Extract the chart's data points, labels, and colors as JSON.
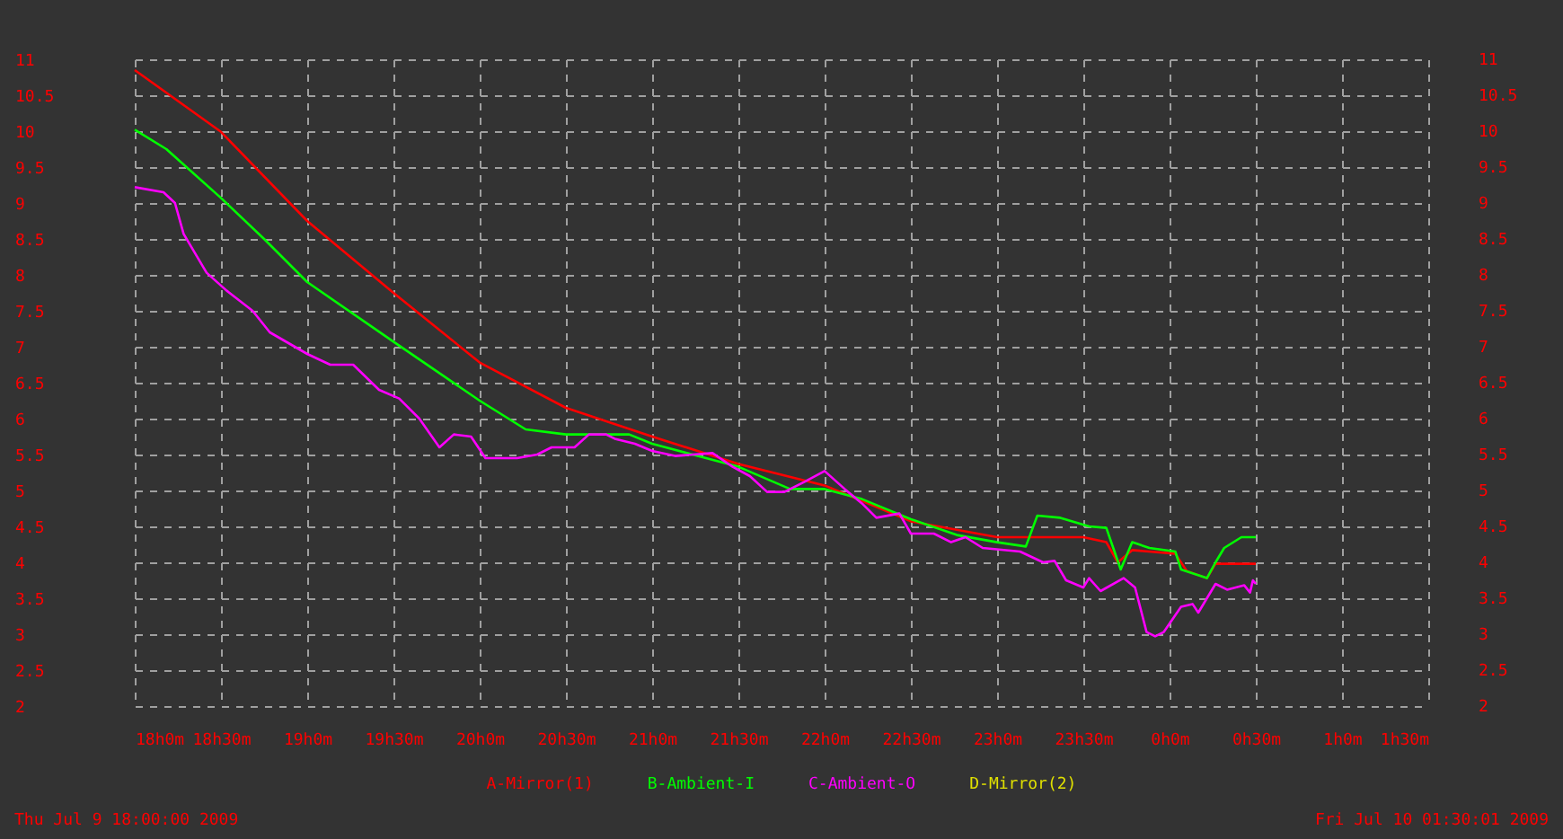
{
  "chart_data": {
    "type": "line",
    "xlim": [
      "2009-07-09T18:00",
      "2009-07-10T01:30"
    ],
    "xticks": [
      {
        "value": "2009-07-09T18:00",
        "label": "18h0m"
      },
      {
        "value": "2009-07-09T18:30",
        "label": "18h30m"
      },
      {
        "value": "2009-07-09T19:00",
        "label": "19h0m"
      },
      {
        "value": "2009-07-09T19:30",
        "label": "19h30m"
      },
      {
        "value": "2009-07-09T20:00",
        "label": "20h0m"
      },
      {
        "value": "2009-07-09T20:30",
        "label": "20h30m"
      },
      {
        "value": "2009-07-09T21:00",
        "label": "21h0m"
      },
      {
        "value": "2009-07-09T21:30",
        "label": "21h30m"
      },
      {
        "value": "2009-07-09T22:00",
        "label": "22h0m"
      },
      {
        "value": "2009-07-09T22:30",
        "label": "22h30m"
      },
      {
        "value": "2009-07-09T23:00",
        "label": "23h0m"
      },
      {
        "value": "2009-07-09T23:30",
        "label": "23h30m"
      },
      {
        "value": "2009-07-10T00:00",
        "label": "0h0m"
      },
      {
        "value": "2009-07-10T00:30",
        "label": "0h30m"
      },
      {
        "value": "2009-07-10T01:00",
        "label": "1h0m"
      },
      {
        "value": "2009-07-10T01:30",
        "label": "1h30m"
      }
    ],
    "ylim": [
      2,
      11
    ],
    "yticks": [
      2,
      2.5,
      3,
      3.5,
      4,
      4.5,
      5,
      5.5,
      6,
      6.5,
      7,
      7.5,
      8,
      8.5,
      9,
      9.5,
      10,
      10.5,
      11
    ],
    "y2lim": [
      2,
      11
    ],
    "y2ticks": [
      2,
      2.5,
      3,
      3.5,
      4,
      4.5,
      5,
      5.5,
      6,
      6.5,
      7,
      7.5,
      8,
      8.5,
      9,
      9.5,
      10,
      10.5,
      11
    ],
    "grid": true,
    "legend": "bottom",
    "marker": "none",
    "line_style": "solid",
    "series": [
      {
        "name": "A-Mirror(1)",
        "color": "#ff0000",
        "x": [
          "2009-07-09T18:00",
          "2009-07-09T18:30",
          "2009-07-09T19:00",
          "2009-07-09T19:30",
          "2009-07-09T20:00",
          "2009-07-09T20:30",
          "2009-07-09T21:00",
          "2009-07-09T21:30",
          "2009-07-09T22:00",
          "2009-07-09T22:30",
          "2009-07-09T23:00",
          "2009-07-09T23:12",
          "2009-07-09T23:30",
          "2009-07-09T23:38",
          "2009-07-09T23:42",
          "2009-07-09T23:47",
          "2009-07-10T00:02",
          "2009-07-10T00:06",
          "2009-07-10T00:13",
          "2009-07-10T00:16",
          "2009-07-10T00:30"
        ],
        "values": [
          10.85,
          9.99,
          8.75,
          7.75,
          6.78,
          6.15,
          5.75,
          5.37,
          5.07,
          4.57,
          4.35,
          4.35,
          4.35,
          4.28,
          4.0,
          4.17,
          4.12,
          3.88,
          3.78,
          3.98,
          3.98
        ]
      },
      {
        "name": "B-Ambient-I",
        "color": "#00ff00",
        "x": [
          "2009-07-09T18:00",
          "2009-07-09T18:11",
          "2009-07-09T18:30",
          "2009-07-09T18:45",
          "2009-07-09T19:00",
          "2009-07-09T19:30",
          "2009-07-09T20:00",
          "2009-07-09T20:16",
          "2009-07-09T20:30",
          "2009-07-09T20:41",
          "2009-07-09T20:52",
          "2009-07-09T21:00",
          "2009-07-09T21:30",
          "2009-07-09T21:48",
          "2009-07-09T22:00",
          "2009-07-09T22:13",
          "2009-07-09T22:30",
          "2009-07-09T22:46",
          "2009-07-09T23:00",
          "2009-07-09T23:10",
          "2009-07-09T23:14",
          "2009-07-09T23:22",
          "2009-07-09T23:32",
          "2009-07-09T23:38",
          "2009-07-09T23:43",
          "2009-07-09T23:47",
          "2009-07-09T23:53",
          "2009-07-10T00:02",
          "2009-07-10T00:04",
          "2009-07-10T00:13",
          "2009-07-10T00:16",
          "2009-07-10T00:19",
          "2009-07-10T00:25",
          "2009-07-10T00:30"
        ],
        "values": [
          10.02,
          9.75,
          9.07,
          8.5,
          7.9,
          7.07,
          6.25,
          5.85,
          5.78,
          5.78,
          5.78,
          5.65,
          5.33,
          5.02,
          5.02,
          4.88,
          4.6,
          4.38,
          4.28,
          4.22,
          4.65,
          4.62,
          4.5,
          4.48,
          3.9,
          4.28,
          4.2,
          4.15,
          3.9,
          3.78,
          4.0,
          4.2,
          4.35,
          4.35
        ]
      },
      {
        "name": "C-Ambient-O",
        "color": "#ff00ff",
        "x": [
          "2009-07-09T18:00",
          "2009-07-09T18:10",
          "2009-07-09T18:14",
          "2009-07-09T18:17",
          "2009-07-09T18:25",
          "2009-07-09T18:32",
          "2009-07-09T18:41",
          "2009-07-09T18:47",
          "2009-07-09T19:00",
          "2009-07-09T19:08",
          "2009-07-09T19:16",
          "2009-07-09T19:25",
          "2009-07-09T19:32",
          "2009-07-09T19:39",
          "2009-07-09T19:46",
          "2009-07-09T19:51",
          "2009-07-09T19:57",
          "2009-07-09T20:02",
          "2009-07-09T20:13",
          "2009-07-09T20:20",
          "2009-07-09T20:25",
          "2009-07-09T20:33",
          "2009-07-09T20:38",
          "2009-07-09T20:44",
          "2009-07-09T20:47",
          "2009-07-09T20:54",
          "2009-07-09T21:00",
          "2009-07-09T21:08",
          "2009-07-09T21:21",
          "2009-07-09T21:28",
          "2009-07-09T21:34",
          "2009-07-09T21:40",
          "2009-07-09T21:46",
          "2009-07-09T21:53",
          "2009-07-09T22:00",
          "2009-07-09T22:07",
          "2009-07-09T22:13",
          "2009-07-09T22:18",
          "2009-07-09T22:26",
          "2009-07-09T22:30",
          "2009-07-09T22:38",
          "2009-07-09T22:44",
          "2009-07-09T22:49",
          "2009-07-09T22:55",
          "2009-07-09T23:08",
          "2009-07-09T23:16",
          "2009-07-09T23:20",
          "2009-07-09T23:24",
          "2009-07-09T23:30",
          "2009-07-09T23:32",
          "2009-07-09T23:36",
          "2009-07-09T23:44",
          "2009-07-09T23:48",
          "2009-07-09T23:52",
          "2009-07-09T23:55",
          "2009-07-09T23:58",
          "2009-07-10T00:04",
          "2009-07-10T00:08",
          "2009-07-10T00:10",
          "2009-07-10T00:13",
          "2009-07-10T00:16",
          "2009-07-10T00:20",
          "2009-07-10T00:26",
          "2009-07-10T00:28",
          "2009-07-10T00:29",
          "2009-07-10T00:30"
        ],
        "values": [
          9.22,
          9.15,
          9.0,
          8.57,
          8.03,
          7.78,
          7.5,
          7.2,
          6.9,
          6.75,
          6.75,
          6.4,
          6.28,
          6.0,
          5.6,
          5.78,
          5.75,
          5.45,
          5.45,
          5.5,
          5.6,
          5.6,
          5.78,
          5.78,
          5.72,
          5.65,
          5.55,
          5.48,
          5.52,
          5.33,
          5.2,
          4.98,
          4.98,
          5.12,
          5.27,
          5.02,
          4.82,
          4.62,
          4.68,
          4.4,
          4.4,
          4.28,
          4.35,
          4.2,
          4.15,
          4.0,
          4.02,
          3.75,
          3.65,
          3.78,
          3.6,
          3.78,
          3.65,
          3.03,
          2.97,
          3.03,
          3.38,
          3.42,
          3.3,
          3.5,
          3.7,
          3.62,
          3.68,
          3.58,
          3.75,
          3.7
        ]
      },
      {
        "name": "D-Mirror(2)",
        "color": "#e0e000"
      }
    ],
    "annotations": [
      "Thu Jul  9 18:00:00 2009",
      "Fri Jul 10 01:30:01 2009"
    ]
  }
}
